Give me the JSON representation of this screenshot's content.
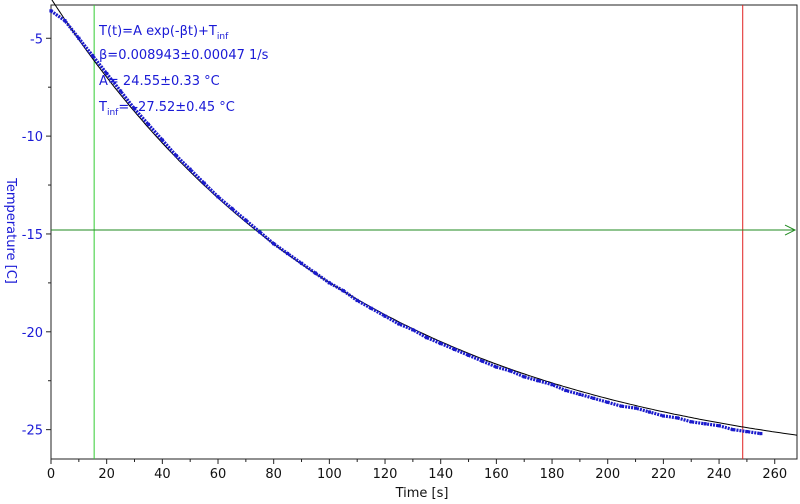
{
  "chart_data": {
    "type": "scatter",
    "xlabel": "Time [s]",
    "ylabel": "Temperature [C]",
    "xlim": [
      0,
      268
    ],
    "ylim": [
      -26.5,
      -3.3
    ],
    "x_ticks": [
      0,
      20,
      40,
      60,
      80,
      100,
      120,
      140,
      160,
      180,
      200,
      220,
      240,
      260
    ],
    "y_ticks": [
      -5,
      -10,
      -15,
      -20,
      -25
    ],
    "grid": false,
    "annotation": {
      "formula_prefix": "T(t)=A exp(-βt)+T",
      "formula_sub": "inf",
      "beta": "β=0.008943±0.00047 1/s",
      "a_value": "A= 24.55±0.33 °C",
      "tinf_prefix": "T",
      "tinf_sub": "inf",
      "tinf_value": "= -27.52±0.45 °C"
    },
    "fit": {
      "A": 24.55,
      "beta": 0.008943,
      "Tinf": -27.52
    },
    "markers": {
      "left_x": 15.5,
      "right_x": 248.5,
      "horizontal_y": -14.8
    },
    "series": [
      {
        "x": [
          0,
          5,
          10,
          15,
          20,
          25,
          30,
          35,
          40,
          45,
          50,
          55,
          60,
          65,
          70,
          75,
          80,
          85,
          90,
          95,
          100,
          105,
          110,
          115,
          120,
          125,
          130,
          135,
          140,
          145,
          150,
          155,
          160,
          165,
          170,
          175,
          180,
          185,
          190,
          195,
          200,
          205,
          210,
          215,
          220,
          225,
          230,
          235,
          240,
          245,
          250,
          255
        ],
        "y": [
          -3.6,
          -4.1,
          -5.0,
          -5.9,
          -6.8,
          -7.7,
          -8.6,
          -9.4,
          -10.2,
          -11.0,
          -11.7,
          -12.4,
          -13.1,
          -13.7,
          -14.3,
          -14.9,
          -15.5,
          -16.0,
          -16.5,
          -17.0,
          -17.5,
          -17.9,
          -18.4,
          -18.8,
          -19.2,
          -19.6,
          -19.9,
          -20.3,
          -20.6,
          -20.9,
          -21.2,
          -21.5,
          -21.8,
          -22.0,
          -22.3,
          -22.5,
          -22.7,
          -23.0,
          -23.2,
          -23.4,
          -23.6,
          -23.8,
          -23.9,
          -24.1,
          -24.3,
          -24.4,
          -24.6,
          -24.7,
          -24.8,
          -25.0,
          -25.1,
          -25.2
        ]
      }
    ]
  }
}
